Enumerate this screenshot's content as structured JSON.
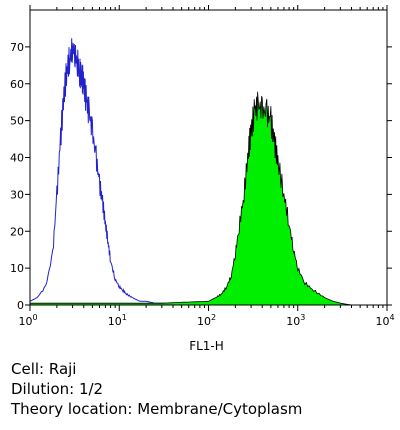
{
  "chart_data": {
    "type": "area",
    "xscale": "log",
    "xlabel": "FL1-H",
    "xlim": [
      1,
      10000
    ],
    "ylim": [
      0,
      80
    ],
    "yticks": [
      0,
      10,
      20,
      30,
      40,
      50,
      60,
      70
    ],
    "xticks": [
      {
        "value": 1,
        "base": "10",
        "exp": "0"
      },
      {
        "value": 10,
        "base": "10",
        "exp": "1"
      },
      {
        "value": 100,
        "base": "10",
        "exp": "2"
      },
      {
        "value": 1000,
        "base": "10",
        "exp": "3"
      },
      {
        "value": 10000,
        "base": "10",
        "exp": "4"
      }
    ],
    "series": [
      {
        "style": "outline",
        "color": "#2222cc",
        "x": [
          1.0,
          1.2,
          1.5,
          1.8,
          2.0,
          2.2,
          2.4,
          2.6,
          2.8,
          3.0,
          3.2,
          3.4,
          3.6,
          3.8,
          4.0,
          4.3,
          4.6,
          5.0,
          5.5,
          6.0,
          6.5,
          7.0,
          7.5,
          8.0,
          9.0,
          10.0,
          11.0,
          12.0,
          14.0,
          17.0,
          20.0,
          25.0,
          30.0,
          40.0,
          60.0
        ],
        "y": [
          1,
          2,
          5,
          14,
          30,
          45,
          57,
          64,
          67,
          70,
          68,
          66,
          63,
          62,
          60,
          55,
          52,
          47,
          40,
          33,
          28,
          22,
          17,
          12,
          7,
          5,
          4,
          3,
          2,
          1,
          1,
          0.5,
          0.5,
          0.3,
          0
        ]
      },
      {
        "style": "filled",
        "color": "#00ee00",
        "x": [
          1.0,
          5.0,
          10.0,
          30.0,
          60.0,
          100.0,
          120.0,
          140.0,
          160.0,
          180.0,
          200.0,
          220.0,
          250.0,
          280.0,
          300.0,
          330.0,
          360.0,
          400.0,
          450.0,
          500.0,
          550.0,
          600.0,
          700.0,
          800.0,
          900.0,
          1000.0,
          1200.0,
          1500.0,
          2000.0,
          2500.0,
          3000.0,
          4000.0
        ],
        "y": [
          0.5,
          0.5,
          0.5,
          0.5,
          0.8,
          1,
          2,
          3,
          5,
          8,
          14,
          21,
          30,
          42,
          47,
          53,
          54,
          53,
          52,
          50,
          44,
          39,
          30,
          22,
          15,
          10,
          6,
          4,
          2,
          1,
          0.5,
          0
        ]
      }
    ]
  },
  "caption": {
    "line1": "Cell: Raji",
    "line2": "Dilution: 1/2",
    "line3": "Theory location: Membrane/Cytoplasm"
  }
}
